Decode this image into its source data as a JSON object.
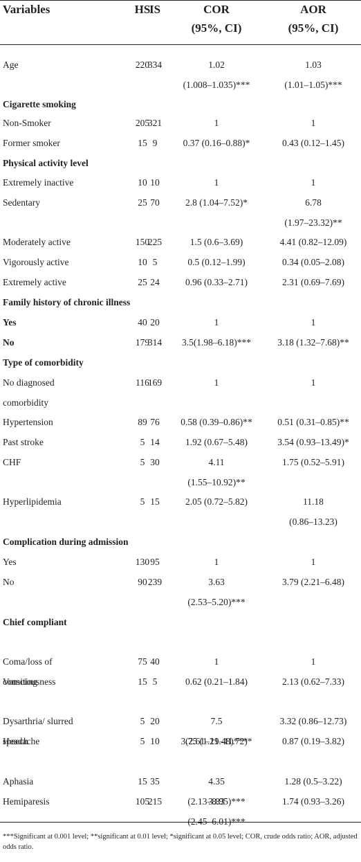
{
  "header": {
    "variables": "Variables",
    "hs": "HS",
    "is": "IS",
    "cor_1": "COR",
    "cor_2": "(95%, CI)",
    "aor_1": "AOR",
    "aor_2": "(95%, CI)"
  },
  "rows": [
    {
      "type": "data",
      "label": [
        "Age"
      ],
      "hs": "220",
      "is": "334",
      "cor": [
        "1.02",
        "(1.008–1.035)***"
      ],
      "aor": [
        "1.03",
        "(1.01–1.05)***"
      ]
    },
    {
      "type": "section",
      "label": "Cigarette smoking"
    },
    {
      "type": "data",
      "label": [
        "Non-Smoker"
      ],
      "hs": "205",
      "is": "321",
      "cor": [
        "1"
      ],
      "aor": [
        "1"
      ]
    },
    {
      "type": "data",
      "label": [
        "Former smoker"
      ],
      "hs": "15",
      "is": "9",
      "cor": [
        "0.37 (0.16–0.88)*"
      ],
      "aor": [
        "0.43 (0.12–1.45)"
      ]
    },
    {
      "type": "section",
      "label": "Physical activity level"
    },
    {
      "type": "data",
      "label": [
        "Extremely inactive"
      ],
      "hs": "10",
      "is": "10",
      "cor": [
        "1"
      ],
      "aor": [
        "1"
      ]
    },
    {
      "type": "data",
      "label": [
        "Sedentary"
      ],
      "hs": "25",
      "is": "70",
      "cor": [
        "2.8 (1.04–7.52)*"
      ],
      "aor": [
        "6.78",
        "(1.97–23.32)**"
      ]
    },
    {
      "type": "data",
      "label": [
        "Moderately active"
      ],
      "hs": "150",
      "is": "225",
      "cor": [
        "1.5 (0.6–3.69)"
      ],
      "aor": [
        "4.41 (0.82–12.09)"
      ]
    },
    {
      "type": "data",
      "label": [
        "Vigorously active"
      ],
      "hs": "10",
      "is": "5",
      "cor": [
        "0.5 (0.12–1.99)"
      ],
      "aor": [
        "0.34 (0.05–2.08)"
      ]
    },
    {
      "type": "data",
      "label": [
        "Extremely active"
      ],
      "hs": "25",
      "is": "24",
      "cor": [
        "0.96 (0.33–2.71)"
      ],
      "aor": [
        "2.31 (0.69–7.69)"
      ]
    },
    {
      "type": "section",
      "label": "Family history of chronic illness"
    },
    {
      "type": "data",
      "bold": true,
      "label": [
        "Yes"
      ],
      "hs": "40",
      "is": "20",
      "cor": [
        "1"
      ],
      "aor": [
        "1"
      ]
    },
    {
      "type": "data",
      "bold": true,
      "label": [
        "No"
      ],
      "hs": "179",
      "is": "314",
      "cor": [
        "3.5(1.98–6.18)***"
      ],
      "aor": [
        "3.18 (1.32–7.68)**"
      ]
    },
    {
      "type": "section",
      "label": "Type of comorbidity"
    },
    {
      "type": "data",
      "label": [
        "No diagnosed",
        "comorbidity"
      ],
      "hs": "116",
      "is": "169",
      "cor": [
        "1"
      ],
      "aor": [
        "1"
      ]
    },
    {
      "type": "data",
      "label": [
        "Hypertension"
      ],
      "hs": "89",
      "is": "76",
      "cor": [
        "0.58 (0.39–0.86)**"
      ],
      "aor": [
        "0.51 (0.31–0.85)**"
      ]
    },
    {
      "type": "data",
      "label": [
        "Past stroke"
      ],
      "hs": "5",
      "is": "14",
      "cor": [
        "1.92 (0.67–5.48)"
      ],
      "aor": [
        "3.54 (0.93–13.49)*"
      ]
    },
    {
      "type": "data",
      "label": [
        "CHF"
      ],
      "hs": "5",
      "is": "30",
      "cor": [
        "4.11",
        "(1.55–10.92)**"
      ],
      "aor": [
        "1.75 (0.52–5.91)"
      ]
    },
    {
      "type": "data",
      "label": [
        "Hyperlipidemia"
      ],
      "hs": "5",
      "is": "15",
      "cor": [
        "2.05 (0.72–5.82)"
      ],
      "aor": [
        "11.18",
        "(0.86–13.23)"
      ]
    },
    {
      "type": "section",
      "label": "Complication during admission"
    },
    {
      "type": "data",
      "label": [
        "Yes"
      ],
      "hs": "130",
      "is": "95",
      "cor": [
        "1"
      ],
      "aor": [
        "1"
      ]
    },
    {
      "type": "data",
      "label": [
        "No"
      ],
      "hs": "90",
      "is": "239",
      "cor": [
        "3.63",
        "(2.53–5.20)***"
      ],
      "aor": [
        "3.79 (2.21–6.48)"
      ]
    },
    {
      "type": "section",
      "label": "Chief compliant"
    },
    {
      "type": "data",
      "label": [
        "Coma/loss of",
        "consciousness"
      ],
      "hs": "75",
      "is": "40",
      "cor": [
        "1"
      ],
      "aor": [
        "1"
      ]
    },
    {
      "type": "data",
      "label": [
        "Vomiting"
      ],
      "hs": "15",
      "is": "5",
      "cor": [
        "0.62 (0.21–1.84)"
      ],
      "aor": [
        "2.13 (0.62–7.33)"
      ]
    },
    {
      "type": "data",
      "label": [
        "Dysarthria/ slurred",
        "speech"
      ],
      "hs": "5",
      "is": "20",
      "cor": [
        "7.5",
        "(2.61–21.48)***"
      ],
      "aor": [
        "3.32 (0.86–12.73)"
      ]
    },
    {
      "type": "data",
      "label": [
        "Headache"
      ],
      "hs": "5",
      "is": "10",
      "cor": [
        "3.75 (1.19–11.72)*"
      ],
      "aor": [
        "0.87 (0.19–3.82)"
      ]
    },
    {
      "type": "data",
      "label": [
        "Aphasia"
      ],
      "hs": "15",
      "is": "35",
      "cor": [
        "4.35",
        "(2.13–8.95)***"
      ],
      "aor": [
        "1.28 (0.5–3.22)"
      ]
    },
    {
      "type": "data",
      "label": [
        "Hemiparesis"
      ],
      "hs": "105",
      "is": "215",
      "cor": [
        "3.83",
        "(2.45–6.01)***"
      ],
      "aor": [
        "1.74 (0.93–3.26)"
      ]
    }
  ],
  "footnote": "***Significant at 0.001 level; **significant at 0.01 level; *significant at 0.05 level; COR, crude odds ratio; AOR, adjusted odds ratio."
}
